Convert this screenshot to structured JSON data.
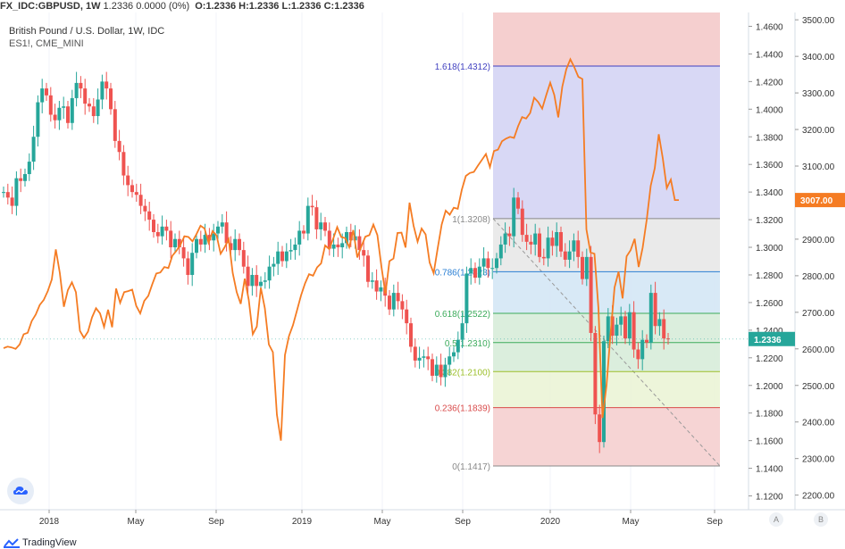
{
  "header": {
    "symbol": "FX_IDC:GBPUSD, 1W",
    "values": "1.2336 0.0000 (0%)",
    "o": "O:1.2336",
    "h": "H:1.2336",
    "l": "L:1.2336",
    "c": "C:1.2336"
  },
  "legend": {
    "line1": "British Pound / U.S. Dollar, 1W, IDC",
    "line2": "ES1!, CME_MINI"
  },
  "brand": "TradingView",
  "axis_buttons": {
    "left": "A",
    "right": "B"
  },
  "colors": {
    "up": "#26a69a",
    "down": "#ef5350",
    "line": "#f57c23",
    "fib_bg_top": "#f5cfcf",
    "fib_blue": "#d4d4f4",
    "fib_grey": "#e8e8e8",
    "fib_lightblue": "#d4e7f5",
    "fib_green": "#d7ecd9",
    "fib_lime": "#ebf4d6",
    "current_price_tag": "#26a69a",
    "es_price_tag": "#f57c23"
  },
  "chart_data": {
    "type": "candlestick",
    "x_axis": {
      "ticks": [
        "2018",
        "May",
        "Sep",
        "2019",
        "May",
        "Sep",
        "2020",
        "May",
        "Sep"
      ]
    },
    "left_axis": {
      "label": "GBPUSD",
      "ticks": [
        "1.4600",
        "1.4400",
        "1.4200",
        "1.4000",
        "1.3800",
        "1.3600",
        "1.3400",
        "1.3200",
        "1.3000",
        "1.2800",
        "1.2600",
        "1.2400",
        "1.2200",
        "1.2000",
        "1.1800",
        "1.1600",
        "1.1400",
        "1.1200"
      ],
      "range": [
        1.11,
        1.47
      ]
    },
    "right_axis": {
      "label": "ES1!",
      "ticks": [
        "3500.00",
        "3400.00",
        "3300.00",
        "3200.00",
        "3100.00",
        "3000.00",
        "2900.00",
        "2800.00",
        "2700.00",
        "2600.00",
        "2500.00",
        "2400.00",
        "2300.00",
        "2200.00"
      ],
      "range": [
        2160,
        3520
      ]
    },
    "price_tags": [
      {
        "label": "1.2336",
        "axis": "left",
        "value": 1.2336,
        "color": "#26a69a"
      },
      {
        "label": "3007.00",
        "axis": "right",
        "value": 3007,
        "color": "#f57c23"
      }
    ],
    "fib_levels": [
      {
        "ratio": 1.618,
        "label": "1.618(1.4312)",
        "value": 1.4312,
        "color": "#4040c0"
      },
      {
        "ratio": 1.0,
        "label": "1(1.3208)",
        "value": 1.3208,
        "color": "#888888"
      },
      {
        "ratio": 0.786,
        "label": "0.786(1.2823)",
        "value": 1.2823,
        "color": "#2a7fd4"
      },
      {
        "ratio": 0.618,
        "label": "0.618(1.2522)",
        "value": 1.2522,
        "color": "#3cab5b"
      },
      {
        "ratio": 0.5,
        "label": "0.5(1.2310)",
        "value": 1.231,
        "color": "#3cab5b"
      },
      {
        "ratio": 0.382,
        "label": "0.382(1.2100)",
        "value": 1.21,
        "color": "#9cbf2a"
      },
      {
        "ratio": 0.236,
        "label": "0.236(1.1839)",
        "value": 1.1839,
        "color": "#d94a4a"
      },
      {
        "ratio": 0,
        "label": "0(1.1417)",
        "value": 1.1417,
        "color": "#888888"
      }
    ],
    "fib_top": 1.47,
    "series": [
      {
        "name": "GBPUSD",
        "type": "candlestick",
        "close": [
          1.34,
          1.336,
          1.33,
          1.35,
          1.348,
          1.353,
          1.362,
          1.38,
          1.405,
          1.415,
          1.41,
          1.396,
          1.392,
          1.401,
          1.402,
          1.39,
          1.408,
          1.419,
          1.415,
          1.404,
          1.402,
          1.395,
          1.407,
          1.42,
          1.415,
          1.4,
          1.377,
          1.369,
          1.352,
          1.345,
          1.34,
          1.338,
          1.33,
          1.326,
          1.32,
          1.311,
          1.308,
          1.315,
          1.312,
          1.3,
          1.306,
          1.3,
          1.292,
          1.28,
          1.296,
          1.306,
          1.302,
          1.309,
          1.305,
          1.31,
          1.315,
          1.318,
          1.303,
          1.298,
          1.306,
          1.298,
          1.286,
          1.272,
          1.28,
          1.272,
          1.275,
          1.276,
          1.286,
          1.288,
          1.297,
          1.29,
          1.297,
          1.298,
          1.302,
          1.312,
          1.31,
          1.33,
          1.329,
          1.313,
          1.318,
          1.312,
          1.299,
          1.302,
          1.3,
          1.303,
          1.311,
          1.305,
          1.308,
          1.298,
          1.294,
          1.275,
          1.276,
          1.268,
          1.271,
          1.265,
          1.255,
          1.267,
          1.261,
          1.255,
          1.245,
          1.228,
          1.218,
          1.22,
          1.221,
          1.219,
          1.207,
          1.215,
          1.206,
          1.215,
          1.221,
          1.224,
          1.233,
          1.245,
          1.281,
          1.285,
          1.278,
          1.286,
          1.292,
          1.285,
          1.285,
          1.292,
          1.302,
          1.31,
          1.308,
          1.336,
          1.328,
          1.309,
          1.304,
          1.302,
          1.31,
          1.293,
          1.292,
          1.307,
          1.301,
          1.311,
          1.297,
          1.291,
          1.297,
          1.305,
          1.293,
          1.277,
          1.293,
          1.238,
          1.179,
          1.159,
          1.232,
          1.25,
          1.236,
          1.244,
          1.25,
          1.234,
          1.253,
          1.226,
          1.219,
          1.233,
          1.231,
          1.267,
          1.243,
          1.248,
          1.234,
          1.2336
        ]
      },
      {
        "name": "ES1!",
        "type": "line",
        "close": [
          2602,
          2606,
          2604,
          2600,
          2612,
          2640,
          2644,
          2676,
          2694,
          2720,
          2734,
          2758,
          2790,
          2872,
          2807,
          2715,
          2761,
          2782,
          2755,
          2649,
          2630,
          2647,
          2686,
          2711,
          2697,
          2660,
          2707,
          2659,
          2765,
          2726,
          2755,
          2758,
          2762,
          2718,
          2697,
          2731,
          2745,
          2777,
          2806,
          2809,
          2824,
          2821,
          2855,
          2868,
          2885,
          2908,
          2906,
          2894,
          2914,
          2937,
          2929,
          2890,
          2922,
          2910,
          2860,
          2878,
          2900,
          2808,
          2755,
          2723,
          2792,
          2734,
          2640,
          2661,
          2767,
          2711,
          2612,
          2591,
          2420,
          2349,
          2583,
          2635,
          2665,
          2705,
          2746,
          2779,
          2804,
          2800,
          2823,
          2834,
          2883,
          2873,
          2901,
          2933,
          2906,
          2903,
          2878,
          2925,
          2850,
          2880,
          2907,
          2911,
          2940,
          2911,
          2825,
          2751,
          2840,
          2847,
          2917,
          2918,
          2877,
          3000,
          2937,
          2893,
          2929,
          2913,
          2836,
          2807,
          2875,
          2940,
          2978,
          2967,
          2986,
          2983,
          3035,
          3073,
          3081,
          3084,
          3101,
          3117,
          3133,
          3097,
          3141,
          3145,
          3168,
          3175,
          3180,
          3177,
          3209,
          3234,
          3230,
          3245,
          3287,
          3275,
          3257,
          3294,
          3328,
          3295,
          3233,
          3317,
          3365,
          3392,
          3370,
          3344,
          3338,
          2927,
          2864,
          2860,
          2710,
          2411,
          2500,
          2640,
          2768,
          2811,
          2738,
          2853,
          2870,
          2901,
          2824,
          2877,
          2953,
          3046,
          3094,
          3187,
          3121,
          3040,
          3063,
          3007,
          3007
        ]
      }
    ]
  }
}
